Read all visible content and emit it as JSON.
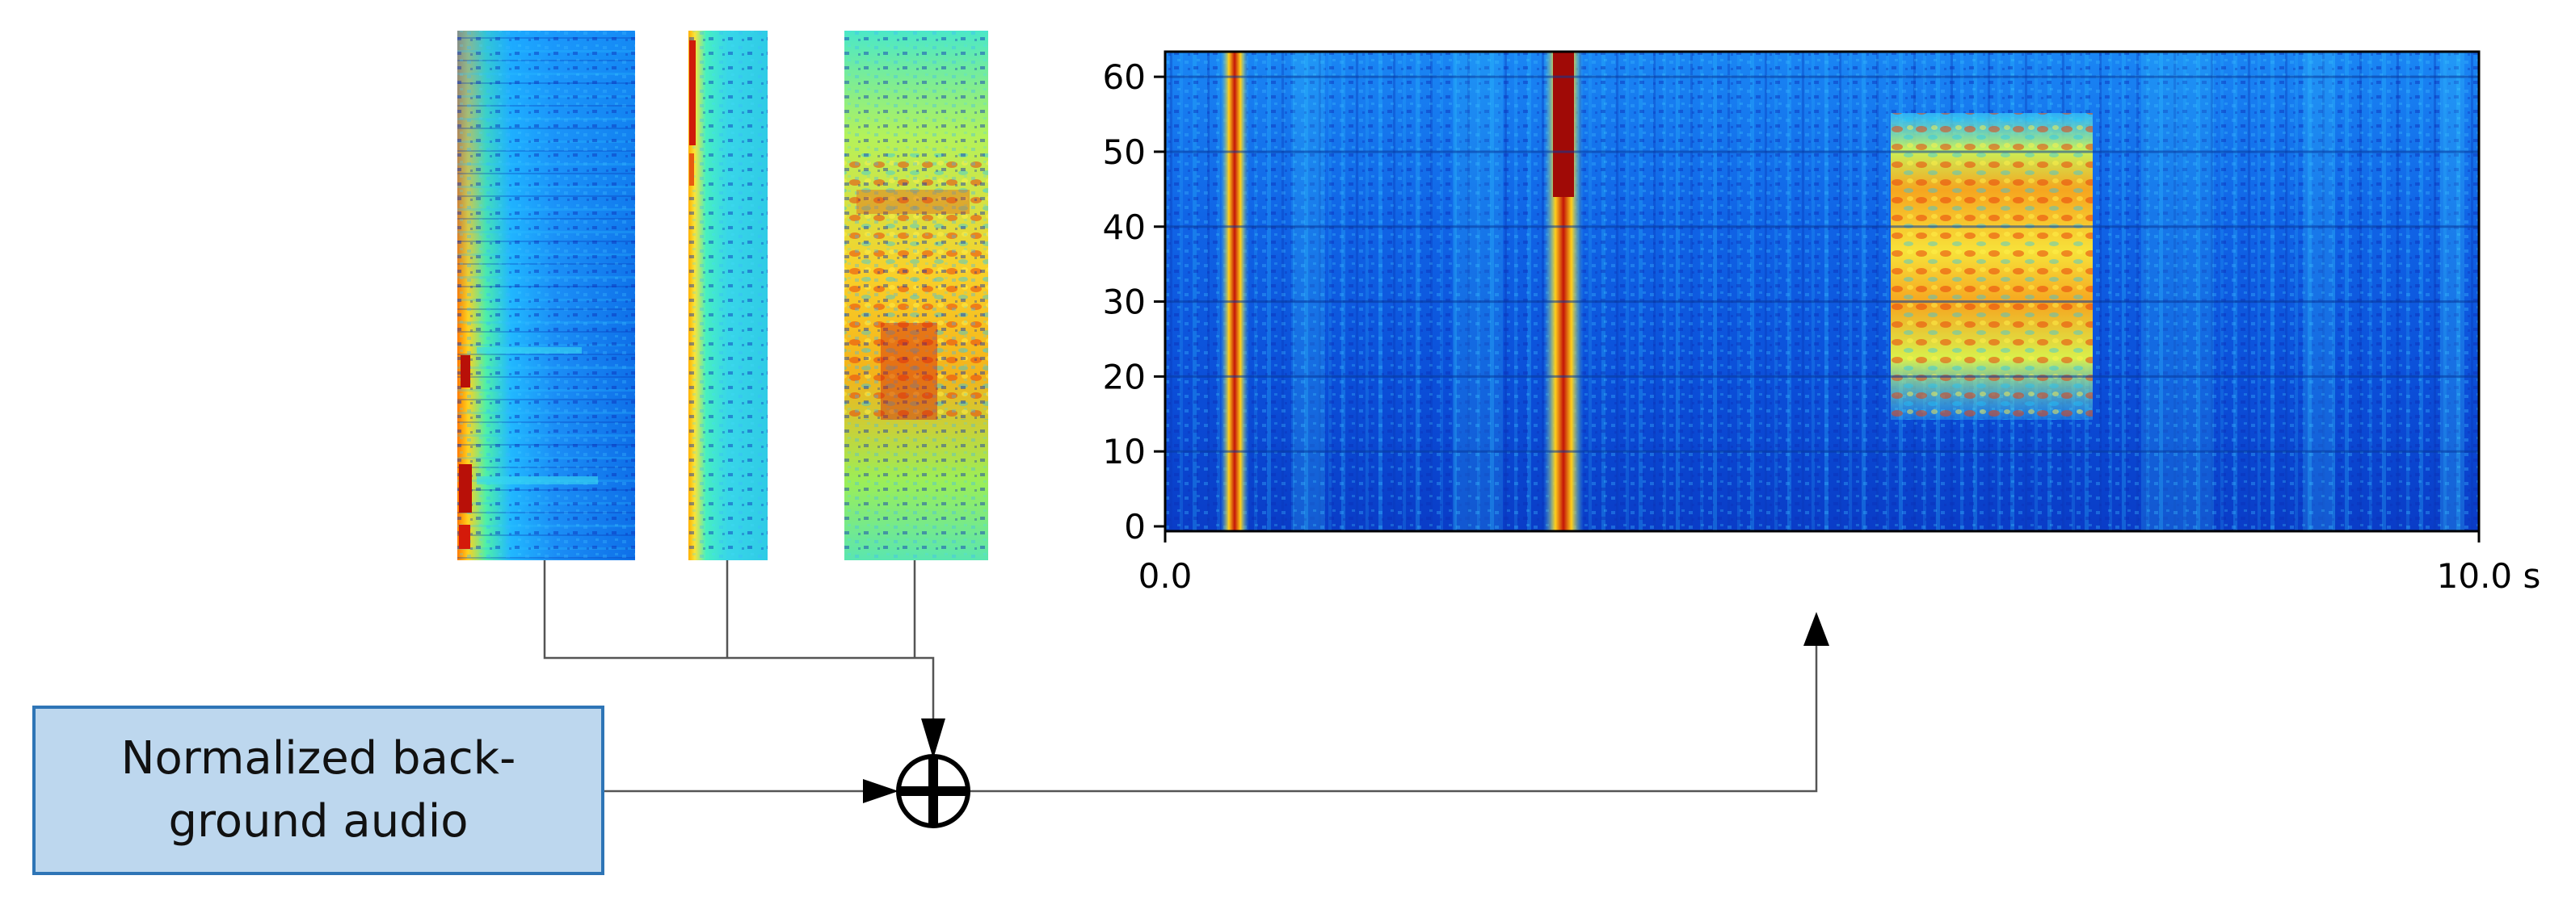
{
  "background_box": {
    "line1": "Normalized back-",
    "line2": "ground audio"
  },
  "spectrogram": {
    "y_ticks": [
      "0",
      "10",
      "20",
      "30",
      "40",
      "50",
      "60"
    ],
    "x_start_label": "0.0",
    "x_end_label": "10.0 s"
  },
  "colors": {
    "box_fill": "#bdd7ee",
    "box_border": "#2e75b6",
    "line": "#555555",
    "arrow": "#000000"
  },
  "icons": [
    "sum-junction-icon",
    "arrow-head-icon"
  ]
}
